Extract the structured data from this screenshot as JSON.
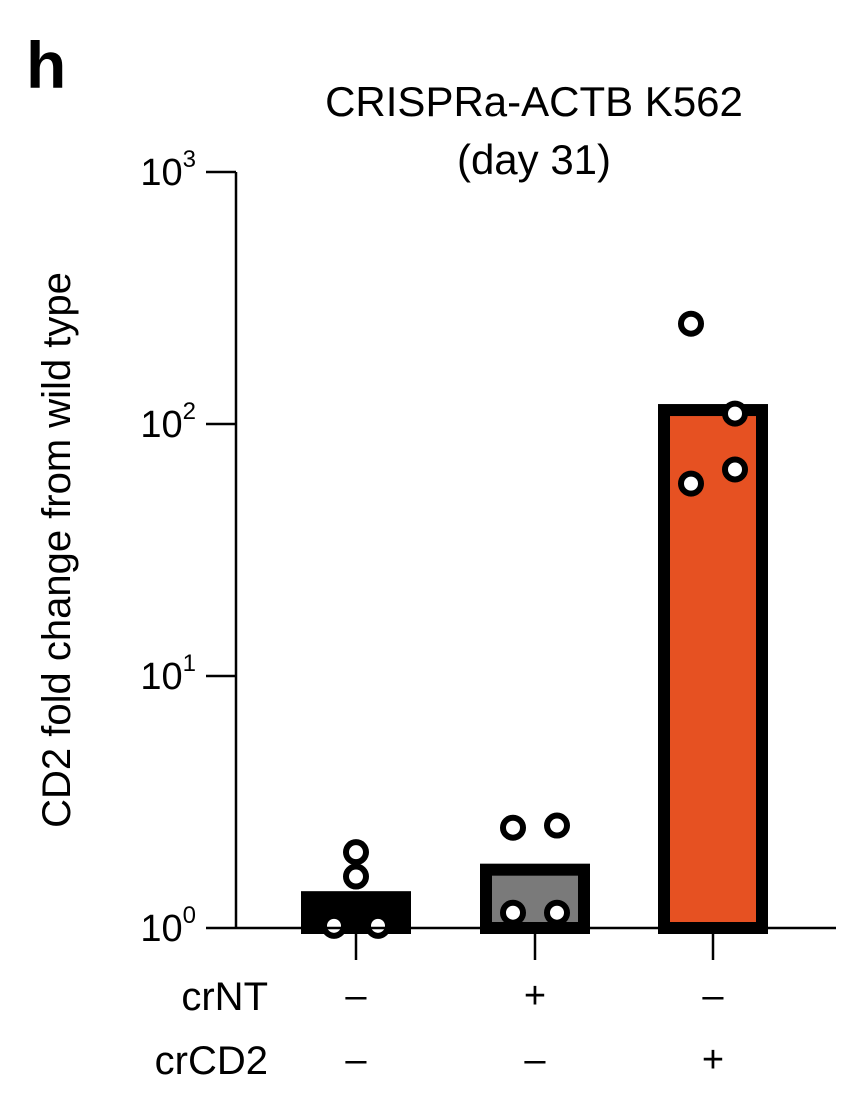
{
  "panel_label": "h",
  "chart_data": {
    "type": "bar",
    "title_lines": [
      "CRISPRa-ACTB K562",
      "(day 31)"
    ],
    "ylabel": "CD2 fold change from wild type",
    "y_scale": "log10",
    "ylim": [
      1,
      1000
    ],
    "y_ticks": [
      {
        "value": 1,
        "base": "10",
        "exp": "0"
      },
      {
        "value": 10,
        "base": "10",
        "exp": "1"
      },
      {
        "value": 100,
        "base": "10",
        "exp": "2"
      },
      {
        "value": 1000,
        "base": "10",
        "exp": "3"
      }
    ],
    "condition_rows": [
      {
        "label": "crNT",
        "marks": [
          "–",
          "+",
          "–"
        ]
      },
      {
        "label": "crCD2",
        "marks": [
          "–",
          "–",
          "+"
        ]
      }
    ],
    "bars": [
      {
        "value": 1.4,
        "color": "#000000",
        "points": [
          2.0,
          1.6,
          1.02,
          1.02
        ]
      },
      {
        "value": 1.8,
        "color": "#7a7a7a",
        "points": [
          2.5,
          2.55,
          1.15,
          1.15
        ]
      },
      {
        "value": 120,
        "color": "#e65122",
        "points": [
          250,
          110,
          58,
          66
        ]
      }
    ]
  }
}
